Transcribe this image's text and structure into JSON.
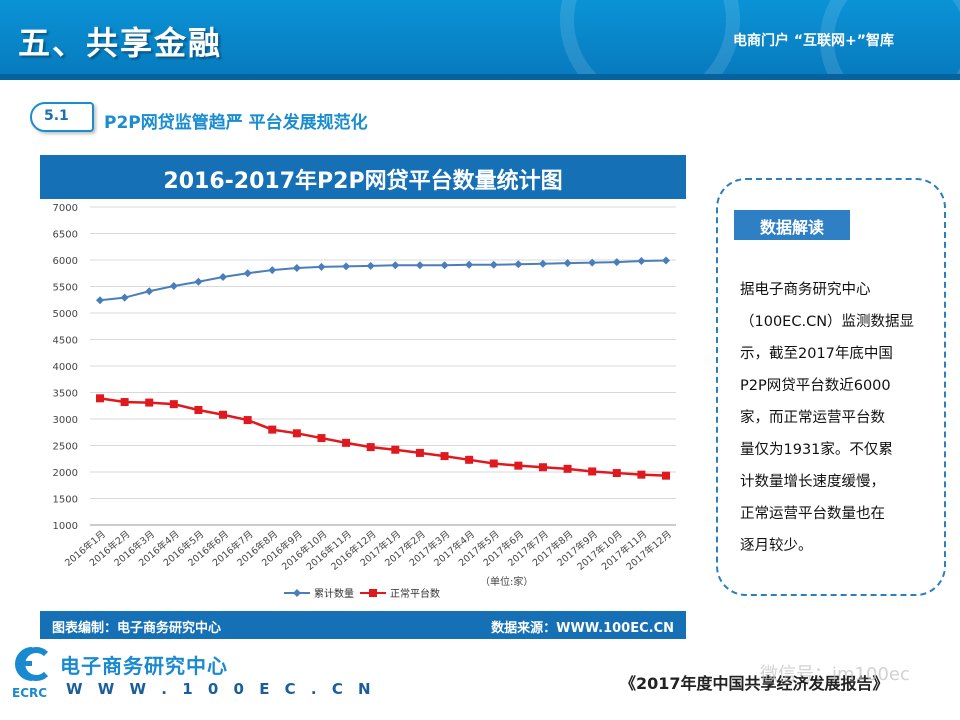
{
  "header": {
    "title": "五、共享金融",
    "right_text": "电商门户 “互联网+”智库"
  },
  "section": {
    "number": "5.1",
    "title": "P2P网贷监管趋严 平台发展规范化"
  },
  "chart_frame": {
    "footer_left": "图表编制：电子商务研究中心",
    "footer_right": "数据来源：WWW.100EC.CN"
  },
  "chart_data": {
    "type": "line",
    "title": "2016-2017年P2P网贷平台数量统计图",
    "categories": [
      "2016年1月",
      "2016年2月",
      "2016年3月",
      "2016年4月",
      "2016年5月",
      "2016年6月",
      "2016年7月",
      "2016年8月",
      "2016年9月",
      "2016年10月",
      "2016年11月",
      "2016年12月",
      "2017年1月",
      "2017年2月",
      "2017年3月",
      "2017年4月",
      "2017年5月",
      "2017年6月",
      "2017年7月",
      "2017年8月",
      "2017年9月",
      "2017年10月",
      "2017年11月",
      "2017年12月"
    ],
    "series": [
      {
        "name": "累计数量",
        "color": "#4a7ebb",
        "marker": "diamond",
        "values": [
          5240,
          5290,
          5410,
          5510,
          5590,
          5680,
          5750,
          5810,
          5850,
          5870,
          5880,
          5890,
          5900,
          5900,
          5900,
          5910,
          5910,
          5920,
          5930,
          5940,
          5950,
          5960,
          5980,
          5990
        ]
      },
      {
        "name": "正常平台数",
        "color": "#e0191e",
        "marker": "square",
        "values": [
          3390,
          3320,
          3310,
          3280,
          3170,
          3080,
          2980,
          2800,
          2730,
          2640,
          2550,
          2470,
          2420,
          2360,
          2300,
          2230,
          2160,
          2120,
          2090,
          2060,
          2010,
          1980,
          1950,
          1931
        ]
      }
    ],
    "yticks": [
      1000,
      1500,
      2000,
      2500,
      3000,
      3500,
      4000,
      4500,
      5000,
      5500,
      6000,
      6500,
      7000
    ],
    "ylim": [
      1000,
      7000
    ],
    "unit_label": "（单位:家）",
    "legend": "bottom",
    "grid": true
  },
  "info": {
    "tag": "数据解读",
    "lines": [
      "据电子商务研究中心",
      "（100EC.CN）监测数据显",
      "示，截至2017年底中国",
      "P2P网贷平台数近6000",
      "家，而正常运营平台数",
      "量仅为1931家。不仅累",
      "计数量增长速度缓慢，",
      "正常运营平台数量也在",
      "逐月较少。"
    ]
  },
  "footer": {
    "org_name": "电子商务研究中心",
    "org_abbr": "ECRC",
    "org_url": "W W W . 1 0 0 E C . C N",
    "report": "《2017年度中国共享经济发展报告》",
    "watermark": "微信号：im100ec"
  },
  "colors": {
    "header": "#0a93d6",
    "chart_bar": "#1570b5",
    "accent": "#1a8cd0"
  }
}
